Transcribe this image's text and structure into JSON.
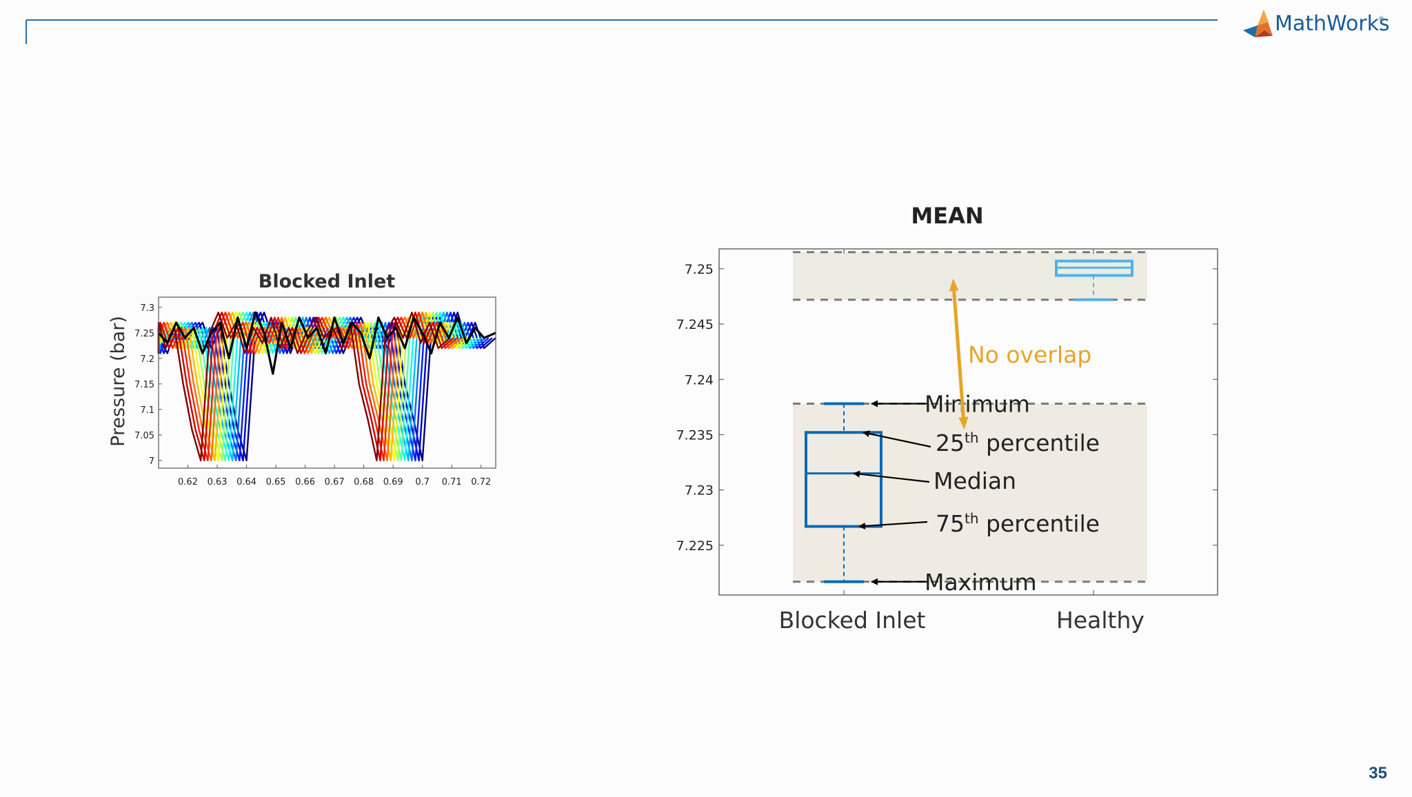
{
  "slide": {
    "brand_name": "MathWorks",
    "page_number": "35",
    "header_line_color": "#2c6ea6"
  },
  "chart_data": [
    {
      "type": "line",
      "title": "Blocked Inlet",
      "ylabel": "Pressure (bar)",
      "xlabel": "",
      "xlim": [
        0.61,
        0.725
      ],
      "ylim": [
        6.985,
        7.32
      ],
      "xticks": [
        0.62,
        0.63,
        0.64,
        0.65,
        0.66,
        0.67,
        0.68,
        0.69,
        0.7,
        0.71,
        0.72
      ],
      "xtick_labels": [
        "0.62",
        "0.63",
        "0.64",
        "0.65",
        "0.66",
        "0.67",
        "0.68",
        "0.69",
        "0.7",
        "0.71",
        "0.72"
      ],
      "yticks": [
        7,
        7.05,
        7.1,
        7.15,
        7.2,
        7.25,
        7.3
      ],
      "ytick_labels": [
        "7",
        "7.05",
        "7.1",
        "7.15",
        "7.2",
        "7.25",
        "7.3"
      ],
      "grid": false,
      "reference_series": {
        "color": "#000000",
        "x": [
          0.61,
          0.613,
          0.616,
          0.619,
          0.622,
          0.625,
          0.628,
          0.631,
          0.634,
          0.637,
          0.64,
          0.643,
          0.646,
          0.649,
          0.652,
          0.655,
          0.658,
          0.661,
          0.664,
          0.667,
          0.67,
          0.673,
          0.676,
          0.679,
          0.682,
          0.685,
          0.688,
          0.691,
          0.694,
          0.697,
          0.7,
          0.703,
          0.706,
          0.709,
          0.712,
          0.715,
          0.718,
          0.721,
          0.725
        ],
        "y": [
          7.25,
          7.23,
          7.27,
          7.24,
          7.26,
          7.21,
          7.25,
          7.27,
          7.2,
          7.28,
          7.22,
          7.29,
          7.25,
          7.17,
          7.27,
          7.22,
          7.28,
          7.24,
          7.26,
          7.21,
          7.28,
          7.23,
          7.27,
          7.25,
          7.2,
          7.28,
          7.24,
          7.26,
          7.22,
          7.28,
          7.25,
          7.21,
          7.27,
          7.24,
          7.28,
          7.23,
          7.26,
          7.24,
          7.25
        ]
      },
      "color_series": {
        "count": 14,
        "colormap": "jet",
        "x": [
          0.61,
          0.613,
          0.616,
          0.619,
          0.622,
          0.625,
          0.628,
          0.631,
          0.634,
          0.637,
          0.64,
          0.643,
          0.646,
          0.649,
          0.652,
          0.655,
          0.658,
          0.661,
          0.664,
          0.667,
          0.67,
          0.673,
          0.676,
          0.679,
          0.682,
          0.685,
          0.688,
          0.691,
          0.694,
          0.697,
          0.7,
          0.703,
          0.706,
          0.709,
          0.712,
          0.715,
          0.718,
          0.721,
          0.725
        ],
        "y": [
          7.24,
          7.21,
          7.26,
          7.23,
          7.25,
          7.27,
          7.22,
          7.26,
          7.15,
          7.06,
          7.0,
          7.25,
          7.29,
          7.24,
          7.27,
          7.21,
          7.26,
          7.23,
          7.28,
          7.22,
          7.26,
          7.21,
          7.25,
          7.28,
          7.24,
          7.26,
          7.22,
          7.27,
          7.15,
          7.08,
          7.0,
          7.25,
          7.28,
          7.24,
          7.29,
          7.23,
          7.27,
          7.22,
          7.24
        ],
        "shift_step": -0.0012
      }
    },
    {
      "type": "box",
      "title": "MEAN",
      "categories": [
        "Blocked Inlet",
        "Healthy"
      ],
      "ylim": [
        7.2205,
        7.2518
      ],
      "yticks": [
        7.225,
        7.23,
        7.235,
        7.24,
        7.245,
        7.25
      ],
      "ytick_labels": [
        "7.225",
        "7.23",
        "7.235",
        "7.24",
        "7.245",
        "7.25"
      ],
      "boxes": [
        {
          "name": "Blocked Inlet",
          "min": 7.2217,
          "q1": 7.2267,
          "median": 7.2315,
          "q3": 7.2352,
          "max": 7.2378,
          "color": "#0a6ab5"
        },
        {
          "name": "Healthy",
          "min": 7.2472,
          "q1": 7.2494,
          "median": 7.2501,
          "q3": 7.2507,
          "max": 7.2507,
          "color": "#4fb3e8"
        }
      ],
      "annotations": {
        "minimum": "Minimum",
        "q1_prefix": "25",
        "q1_sup": "th",
        "q1_suffix": " percentile",
        "median": "Median",
        "q3_prefix": "75",
        "q3_sup": "th",
        "q3_suffix": " percentile",
        "maximum": "Maximum",
        "no_overlap": "No overlap",
        "no_overlap_color": "#e8a427"
      }
    }
  ]
}
